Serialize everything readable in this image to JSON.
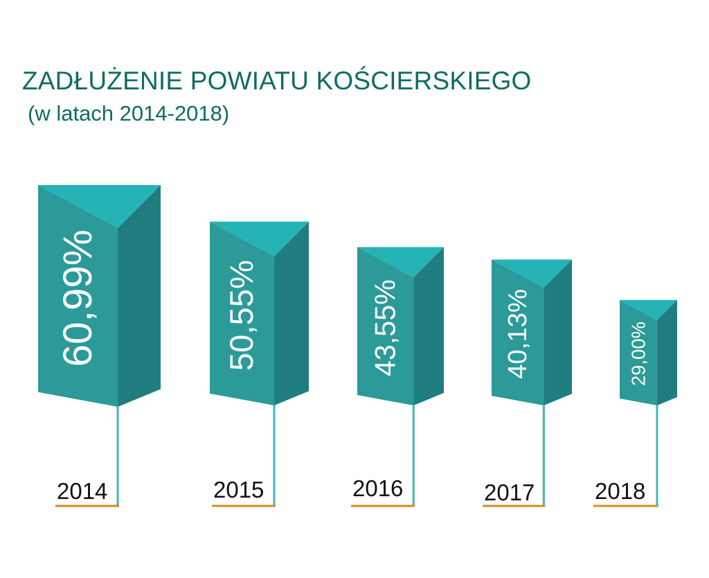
{
  "chart_data": {
    "type": "bar",
    "title": "ZADŁUŻENIE POWIATU KOŚCIERSKIEGO",
    "subtitle": "(w latach 2014-2018)",
    "categories": [
      "2014",
      "2015",
      "2016",
      "2017",
      "2018"
    ],
    "values": [
      60.99,
      50.55,
      43.55,
      40.13,
      29.0
    ],
    "value_labels": [
      "60,99%",
      "50,55%",
      "43,55%",
      "40,13%",
      "29,00%"
    ],
    "unit": "%",
    "xlabel": "",
    "ylabel": "",
    "grid": false,
    "legend": "none"
  },
  "colors": {
    "title": "#0e6b63",
    "bar_front": "#2b9a99",
    "bar_side": "#1f7d80",
    "bar_top": "#25b3b5",
    "stem": "#3fb8b8",
    "underline": "#d38a1c",
    "year_text": "#111111",
    "value_text": "#ffffff"
  }
}
